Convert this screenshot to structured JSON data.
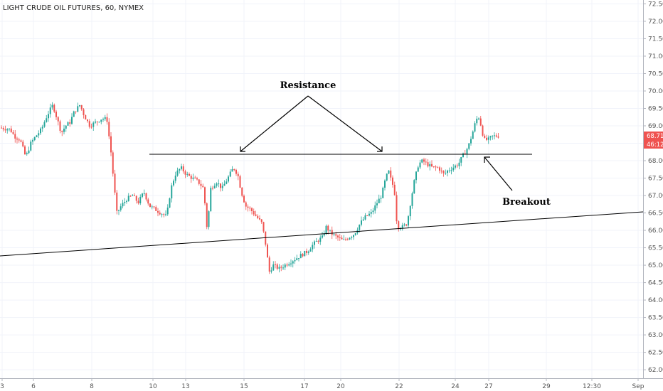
{
  "chart_data": {
    "type": "candlestick",
    "title": "LIGHT CRUDE OIL FUTURES, 60, NYMEX",
    "y_ticks": [
      "72.50",
      "72.00",
      "71.50",
      "71.00",
      "70.50",
      "70.00",
      "69.50",
      "69.00",
      "68.50",
      "68.00",
      "67.50",
      "67.00",
      "66.50",
      "66.00",
      "65.50",
      "65.00",
      "64.50",
      "64.00",
      "63.50",
      "63.00",
      "62.50",
      "62.00"
    ],
    "ylim": [
      61.9,
      72.55
    ],
    "x_ticks": [
      "3",
      "6",
      "8",
      "10",
      "13",
      "15",
      "17",
      "20",
      "22",
      "24",
      "27",
      "29",
      "12:30",
      "Sep"
    ],
    "last_price": "68.71",
    "countdown": "46:12",
    "annotations": [
      "Resistance",
      "Breakout"
    ],
    "price_path": [
      [
        0,
        68.95
      ],
      [
        16,
        68.9
      ],
      [
        22,
        68.7
      ],
      [
        30,
        68.6
      ],
      [
        38,
        68.1
      ],
      [
        45,
        68.5
      ],
      [
        52,
        68.7
      ],
      [
        60,
        68.9
      ],
      [
        68,
        69.3
      ],
      [
        76,
        69.6
      ],
      [
        82,
        69.2
      ],
      [
        88,
        68.8
      ],
      [
        94,
        69.0
      ],
      [
        100,
        69.1
      ],
      [
        106,
        69.4
      ],
      [
        114,
        69.6
      ],
      [
        120,
        69.3
      ],
      [
        128,
        69.0
      ],
      [
        136,
        69.1
      ],
      [
        144,
        69.2
      ],
      [
        152,
        69.2
      ],
      [
        158,
        68.2
      ],
      [
        162,
        67.3
      ],
      [
        166,
        66.5
      ],
      [
        172,
        66.7
      ],
      [
        180,
        66.9
      ],
      [
        188,
        67.0
      ],
      [
        196,
        66.8
      ],
      [
        204,
        67.1
      ],
      [
        212,
        66.7
      ],
      [
        220,
        66.6
      ],
      [
        228,
        66.5
      ],
      [
        236,
        66.4
      ],
      [
        242,
        67.2
      ],
      [
        248,
        67.6
      ],
      [
        256,
        67.8
      ],
      [
        264,
        67.6
      ],
      [
        272,
        67.5
      ],
      [
        280,
        67.4
      ],
      [
        288,
        67.2
      ],
      [
        293,
        66.0
      ],
      [
        298,
        67.2
      ],
      [
        306,
        67.4
      ],
      [
        314,
        67.2
      ],
      [
        322,
        67.5
      ],
      [
        330,
        67.8
      ],
      [
        336,
        67.6
      ],
      [
        341,
        67.1
      ],
      [
        347,
        66.7
      ],
      [
        354,
        66.6
      ],
      [
        362,
        66.4
      ],
      [
        370,
        66.2
      ],
      [
        376,
        65.5
      ],
      [
        380,
        64.8
      ],
      [
        386,
        65.0
      ],
      [
        394,
        64.9
      ],
      [
        402,
        65.0
      ],
      [
        410,
        65.1
      ],
      [
        418,
        65.2
      ],
      [
        426,
        65.3
      ],
      [
        434,
        65.4
      ],
      [
        442,
        65.6
      ],
      [
        448,
        65.7
      ],
      [
        455,
        65.8
      ],
      [
        460,
        66.1
      ],
      [
        468,
        65.9
      ],
      [
        476,
        65.8
      ],
      [
        484,
        65.7
      ],
      [
        492,
        65.8
      ],
      [
        500,
        65.9
      ],
      [
        508,
        66.2
      ],
      [
        516,
        66.4
      ],
      [
        524,
        66.5
      ],
      [
        532,
        66.8
      ],
      [
        538,
        67.0
      ],
      [
        544,
        67.5
      ],
      [
        548,
        67.7
      ],
      [
        552,
        67.4
      ],
      [
        556,
        67.2
      ],
      [
        560,
        66.1
      ],
      [
        568,
        66.1
      ],
      [
        574,
        66.2
      ],
      [
        578,
        66.7
      ],
      [
        584,
        67.4
      ],
      [
        590,
        67.9
      ],
      [
        596,
        68.0
      ],
      [
        602,
        67.9
      ],
      [
        610,
        67.8
      ],
      [
        618,
        67.8
      ],
      [
        626,
        67.6
      ],
      [
        630,
        67.7
      ],
      [
        638,
        67.8
      ],
      [
        646,
        67.9
      ],
      [
        654,
        68.2
      ],
      [
        660,
        68.4
      ],
      [
        666,
        68.8
      ],
      [
        670,
        69.1
      ],
      [
        674,
        69.3
      ],
      [
        678,
        69.0
      ],
      [
        682,
        68.6
      ],
      [
        688,
        68.6
      ],
      [
        694,
        68.7
      ],
      [
        700,
        68.71
      ]
    ]
  },
  "colors": {
    "up": "#26a69a",
    "down": "#ef5350",
    "line": "#000000",
    "badge": "#ef5350",
    "axis": "#b2b5be"
  }
}
